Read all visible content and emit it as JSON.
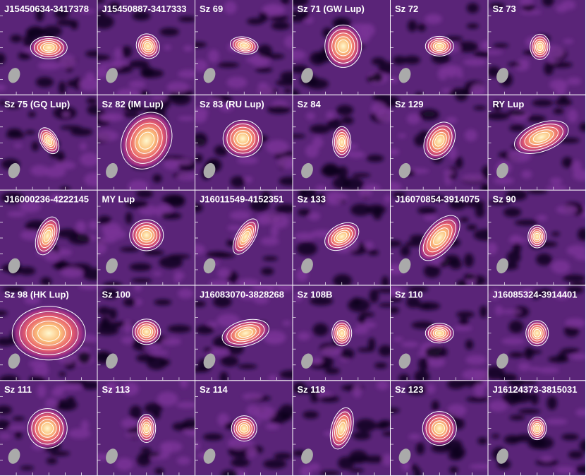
{
  "panels": [
    {
      "label": "J15450634-3417378"
    },
    {
      "label": "J15450887-3417333"
    },
    {
      "label": "Sz 69"
    },
    {
      "label": "Sz 71 (GW Lup)"
    },
    {
      "label": "Sz 72"
    },
    {
      "label": "Sz 73"
    },
    {
      "label": "Sz 75 (GQ Lup)"
    },
    {
      "label": "Sz 82 (IM Lup)"
    },
    {
      "label": "Sz 83 (RU Lup)"
    },
    {
      "label": "Sz 84"
    },
    {
      "label": "Sz 129"
    },
    {
      "label": "RY Lup"
    },
    {
      "label": "J16000236-4222145"
    },
    {
      "label": "MY Lup"
    },
    {
      "label": "J16011549-4152351"
    },
    {
      "label": "Sz 133"
    },
    {
      "label": "J16070854-3914075"
    },
    {
      "label": "Sz 90"
    },
    {
      "label": "Sz 98 (HK Lup)"
    },
    {
      "label": "Sz 100"
    },
    {
      "label": "J16083070-3828268"
    },
    {
      "label": "Sz 108B"
    },
    {
      "label": "Sz 110"
    },
    {
      "label": "J16085324-3914401"
    },
    {
      "label": "Sz 111"
    },
    {
      "label": "Sz 113"
    },
    {
      "label": "Sz 114"
    },
    {
      "label": "Sz 118"
    },
    {
      "label": "Sz 123"
    },
    {
      "label": "J16124373-3815031"
    }
  ]
}
